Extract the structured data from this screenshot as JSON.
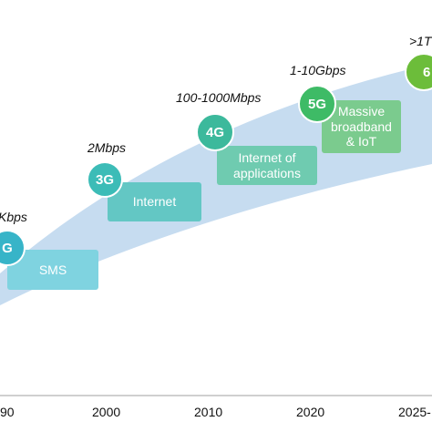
{
  "generations": [
    {
      "label": "G",
      "speed": "Kbps",
      "service": "SMS",
      "color": "#37b4c8",
      "box_color": "#7fd3e0"
    },
    {
      "label": "3G",
      "speed": "2Mbps",
      "service": "Internet",
      "color": "#3cbcb7",
      "box_color": "#63c7c4"
    },
    {
      "label": "4G",
      "speed": "100-1000Mbps",
      "service": "Internet of applications",
      "color": "#3cb99c",
      "box_color": "#6fcbb0"
    },
    {
      "label": "5G",
      "speed": "1-10Gbps",
      "service": "Massive broadband & IoT",
      "color": "#3ebb66",
      "box_color": "#7bcb8e"
    },
    {
      "label": "6",
      "speed": ">1T",
      "service": "",
      "color": "#6cbd3a",
      "box_color": "#9ed27a"
    }
  ],
  "timeline": {
    "ticks": [
      "90",
      "2000",
      "2010",
      "2020",
      "2025-"
    ]
  },
  "band_color": "#c6dcf0"
}
